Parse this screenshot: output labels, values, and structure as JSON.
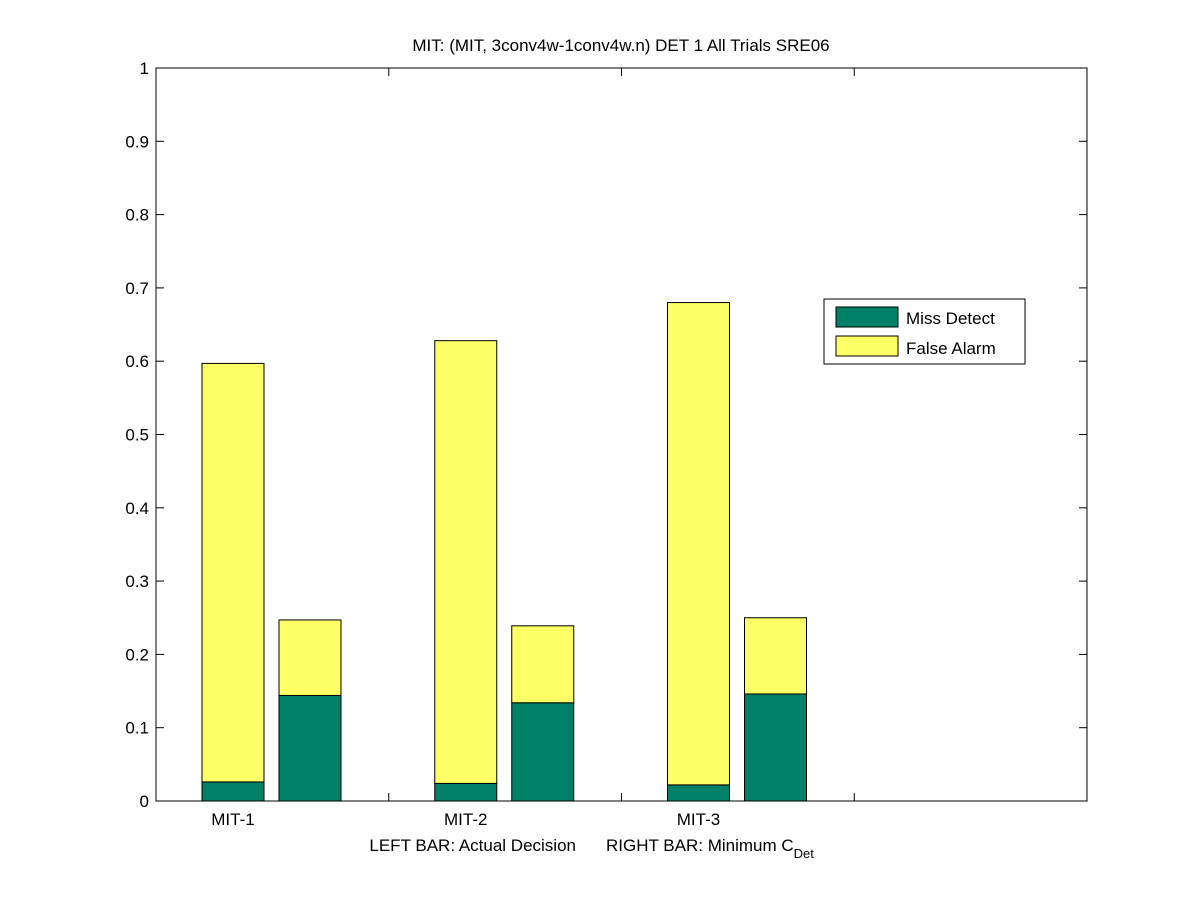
{
  "chart_data": {
    "type": "bar",
    "stacked": true,
    "title": "MIT: (MIT, 3conv4w-1conv4w.n) DET 1 All Trials SRE06",
    "xlabel": {
      "left": "LEFT BAR: Actual Decision",
      "right_prefix": "RIGHT BAR: Minimum C",
      "right_subscript": "Det"
    },
    "ylabel": "",
    "ylim": [
      0,
      1
    ],
    "yticks": [
      "0",
      "0.1",
      "0.2",
      "0.3",
      "0.4",
      "0.5",
      "0.6",
      "0.7",
      "0.8",
      "0.9",
      "1"
    ],
    "categories": [
      "MIT-1",
      "MIT-2",
      "MIT-3"
    ],
    "bars_per_category": [
      "Actual Decision",
      "Minimum C_Det"
    ],
    "series": [
      {
        "name": "Miss Detect",
        "color": "#008066",
        "actual_decision": [
          0.026,
          0.024,
          0.022
        ],
        "minimum_cdet": [
          0.144,
          0.134,
          0.146
        ]
      },
      {
        "name": "False Alarm",
        "color": "#ffff66",
        "actual_decision": [
          0.571,
          0.604,
          0.658
        ],
        "minimum_cdet": [
          0.103,
          0.105,
          0.104
        ]
      }
    ],
    "legend_position": "top-right",
    "grid": false
  }
}
